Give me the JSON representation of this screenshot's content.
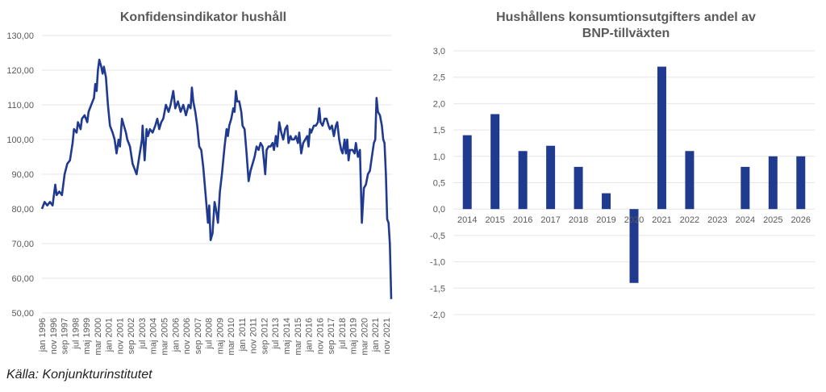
{
  "source": "Källa: Konjunkturinstitutet",
  "chart_data": [
    {
      "type": "line",
      "title": "Konfidensindikator hushåll",
      "xlabel": "",
      "ylabel": "",
      "ylim": [
        50,
        130
      ],
      "yticks": [
        "50,00",
        "60,00",
        "70,00",
        "80,00",
        "90,00",
        "100,00",
        "110,00",
        "120,00",
        "130,00"
      ],
      "xlim": [
        1996.0,
        2022.2
      ],
      "xticks": [
        "jan 1996",
        "nov 1996",
        "sep 1997",
        "jul 1998",
        "maj 1999",
        "mar 2000",
        "jan 2001",
        "nov 2001",
        "sep 2002",
        "jul 2003",
        "maj 2004",
        "mar 2005",
        "jan 2006",
        "nov 2006",
        "sep 2007",
        "jul 2008",
        "maj 2009",
        "mar 2010",
        "jan 2011",
        "nov 2011",
        "sep 2012",
        "jul 2013",
        "maj 2014",
        "mar 2015",
        "jan 2016",
        "nov 2016",
        "sep 2017",
        "jul 2018",
        "maj 2019",
        "mar 2020",
        "jan 2021",
        "nov 2021"
      ],
      "color": "#1f3a8f",
      "grid": true,
      "points": [
        [
          1996.0,
          80
        ],
        [
          1996.2,
          82
        ],
        [
          1996.4,
          81
        ],
        [
          1996.6,
          82
        ],
        [
          1996.8,
          81
        ],
        [
          1997.0,
          87
        ],
        [
          1997.1,
          84
        ],
        [
          1997.3,
          85
        ],
        [
          1997.5,
          84
        ],
        [
          1997.7,
          90
        ],
        [
          1997.9,
          93
        ],
        [
          1998.1,
          94
        ],
        [
          1998.3,
          99
        ],
        [
          1998.4,
          103
        ],
        [
          1998.6,
          102
        ],
        [
          1998.7,
          105
        ],
        [
          1998.9,
          103
        ],
        [
          1999.0,
          106
        ],
        [
          1999.2,
          107
        ],
        [
          1999.4,
          105
        ],
        [
          1999.5,
          108
        ],
        [
          1999.7,
          110
        ],
        [
          1999.9,
          112
        ],
        [
          2000.0,
          116
        ],
        [
          2000.1,
          114
        ],
        [
          2000.2,
          120
        ],
        [
          2000.3,
          123
        ],
        [
          2000.45,
          121
        ],
        [
          2000.55,
          119
        ],
        [
          2000.65,
          121
        ],
        [
          2000.8,
          118
        ],
        [
          2000.95,
          110
        ],
        [
          2001.1,
          104
        ],
        [
          2001.3,
          102
        ],
        [
          2001.45,
          100
        ],
        [
          2001.6,
          96
        ],
        [
          2001.75,
          100
        ],
        [
          2001.85,
          98
        ],
        [
          2002.0,
          106
        ],
        [
          2002.15,
          104
        ],
        [
          2002.3,
          102
        ],
        [
          2002.4,
          100
        ],
        [
          2002.6,
          98
        ],
        [
          2002.8,
          93
        ],
        [
          2003.0,
          91
        ],
        [
          2003.1,
          90
        ],
        [
          2003.3,
          95
        ],
        [
          2003.5,
          100
        ],
        [
          2003.55,
          104
        ],
        [
          2003.7,
          94
        ],
        [
          2003.85,
          103
        ],
        [
          2003.95,
          101
        ],
        [
          2004.1,
          103
        ],
        [
          2004.3,
          102
        ],
        [
          2004.5,
          104
        ],
        [
          2004.65,
          106
        ],
        [
          2004.8,
          103
        ],
        [
          2004.95,
          105
        ],
        [
          2005.1,
          106
        ],
        [
          2005.3,
          110
        ],
        [
          2005.5,
          108
        ],
        [
          2005.65,
          110
        ],
        [
          2005.85,
          114
        ],
        [
          2006.0,
          109
        ],
        [
          2006.2,
          111
        ],
        [
          2006.4,
          108
        ],
        [
          2006.6,
          110
        ],
        [
          2006.8,
          107
        ],
        [
          2007.0,
          110
        ],
        [
          2007.15,
          109
        ],
        [
          2007.25,
          115
        ],
        [
          2007.35,
          111
        ],
        [
          2007.5,
          108
        ],
        [
          2007.65,
          104
        ],
        [
          2007.8,
          98
        ],
        [
          2007.95,
          97
        ],
        [
          2008.1,
          92
        ],
        [
          2008.3,
          83
        ],
        [
          2008.45,
          76
        ],
        [
          2008.55,
          81
        ],
        [
          2008.65,
          71
        ],
        [
          2008.8,
          73
        ],
        [
          2008.95,
          82
        ],
        [
          2009.05,
          80
        ],
        [
          2009.2,
          76
        ],
        [
          2009.35,
          85
        ],
        [
          2009.5,
          90
        ],
        [
          2009.7,
          98
        ],
        [
          2009.85,
          103
        ],
        [
          2009.95,
          101
        ],
        [
          2010.05,
          104
        ],
        [
          2010.2,
          106
        ],
        [
          2010.35,
          109
        ],
        [
          2010.45,
          108
        ],
        [
          2010.55,
          114
        ],
        [
          2010.65,
          111
        ],
        [
          2010.8,
          111
        ],
        [
          2010.95,
          108
        ],
        [
          2011.05,
          104
        ],
        [
          2011.2,
          103
        ],
        [
          2011.35,
          96
        ],
        [
          2011.5,
          88
        ],
        [
          2011.65,
          91
        ],
        [
          2011.8,
          93
        ],
        [
          2011.95,
          95
        ],
        [
          2012.1,
          98
        ],
        [
          2012.25,
          97
        ],
        [
          2012.4,
          99
        ],
        [
          2012.55,
          98
        ],
        [
          2012.65,
          94
        ],
        [
          2012.75,
          90
        ],
        [
          2012.85,
          97
        ],
        [
          2013.0,
          98
        ],
        [
          2013.15,
          98
        ],
        [
          2013.3,
          99
        ],
        [
          2013.4,
          97
        ],
        [
          2013.55,
          101
        ],
        [
          2013.65,
          98
        ],
        [
          2013.8,
          105
        ],
        [
          2013.95,
          102
        ],
        [
          2014.1,
          100
        ],
        [
          2014.25,
          103
        ],
        [
          2014.4,
          104
        ],
        [
          2014.5,
          99
        ],
        [
          2014.65,
          101
        ],
        [
          2014.75,
          100
        ],
        [
          2014.9,
          100
        ],
        [
          2015.05,
          101
        ],
        [
          2015.2,
          99
        ],
        [
          2015.3,
          102
        ],
        [
          2015.45,
          96
        ],
        [
          2015.6,
          99
        ],
        [
          2015.75,
          100
        ],
        [
          2015.9,
          101
        ],
        [
          2016.0,
          98
        ],
        [
          2016.1,
          103
        ],
        [
          2016.2,
          102
        ],
        [
          2016.4,
          104
        ],
        [
          2016.55,
          104
        ],
        [
          2016.7,
          105
        ],
        [
          2016.8,
          109
        ],
        [
          2016.9,
          105
        ],
        [
          2017.05,
          104
        ],
        [
          2017.2,
          106
        ],
        [
          2017.35,
          106
        ],
        [
          2017.5,
          104
        ],
        [
          2017.6,
          103
        ],
        [
          2017.75,
          104
        ],
        [
          2017.9,
          101
        ],
        [
          2018.05,
          104
        ],
        [
          2018.15,
          105
        ],
        [
          2018.3,
          100
        ],
        [
          2018.45,
          97
        ],
        [
          2018.55,
          96
        ],
        [
          2018.7,
          100
        ],
        [
          2018.8,
          96
        ],
        [
          2018.9,
          100
        ],
        [
          2019.0,
          94
        ],
        [
          2019.1,
          97
        ],
        [
          2019.3,
          97
        ],
        [
          2019.45,
          96
        ],
        [
          2019.55,
          99
        ],
        [
          2019.7,
          95
        ],
        [
          2019.85,
          97
        ],
        [
          2020.0,
          76
        ],
        [
          2020.15,
          86
        ],
        [
          2020.3,
          87
        ],
        [
          2020.45,
          90
        ],
        [
          2020.6,
          91
        ],
        [
          2020.75,
          95
        ],
        [
          2020.9,
          99
        ],
        [
          2021.0,
          100
        ],
        [
          2021.1,
          112
        ],
        [
          2021.2,
          108
        ],
        [
          2021.35,
          107
        ],
        [
          2021.5,
          104
        ],
        [
          2021.6,
          100
        ],
        [
          2021.7,
          99
        ],
        [
          2021.8,
          90
        ],
        [
          2021.9,
          77
        ],
        [
          2022.0,
          76
        ],
        [
          2022.1,
          70
        ],
        [
          2022.2,
          54
        ]
      ]
    },
    {
      "type": "bar",
      "title": [
        "Hushållens konsumtionsutgifters andel av",
        "BNP-tillväxten"
      ],
      "xlabel": "",
      "ylabel": "",
      "ylim": [
        -2.0,
        3.0
      ],
      "yticks": [
        "-2,0",
        "-1,5",
        "-1,0",
        "-0,5",
        "0,0",
        "0,5",
        "1,0",
        "1,5",
        "2,0",
        "2,5",
        "3,0"
      ],
      "categories": [
        "2014",
        "2015",
        "2016",
        "2017",
        "2018",
        "2019",
        "2020",
        "2021",
        "2022",
        "2023",
        "2024",
        "2025",
        "2026"
      ],
      "values": [
        1.4,
        1.8,
        1.1,
        1.2,
        0.8,
        0.3,
        -1.4,
        2.7,
        1.1,
        0.0,
        0.8,
        1.0,
        1.0
      ],
      "color": "#1f3a8f",
      "grid": true
    }
  ]
}
